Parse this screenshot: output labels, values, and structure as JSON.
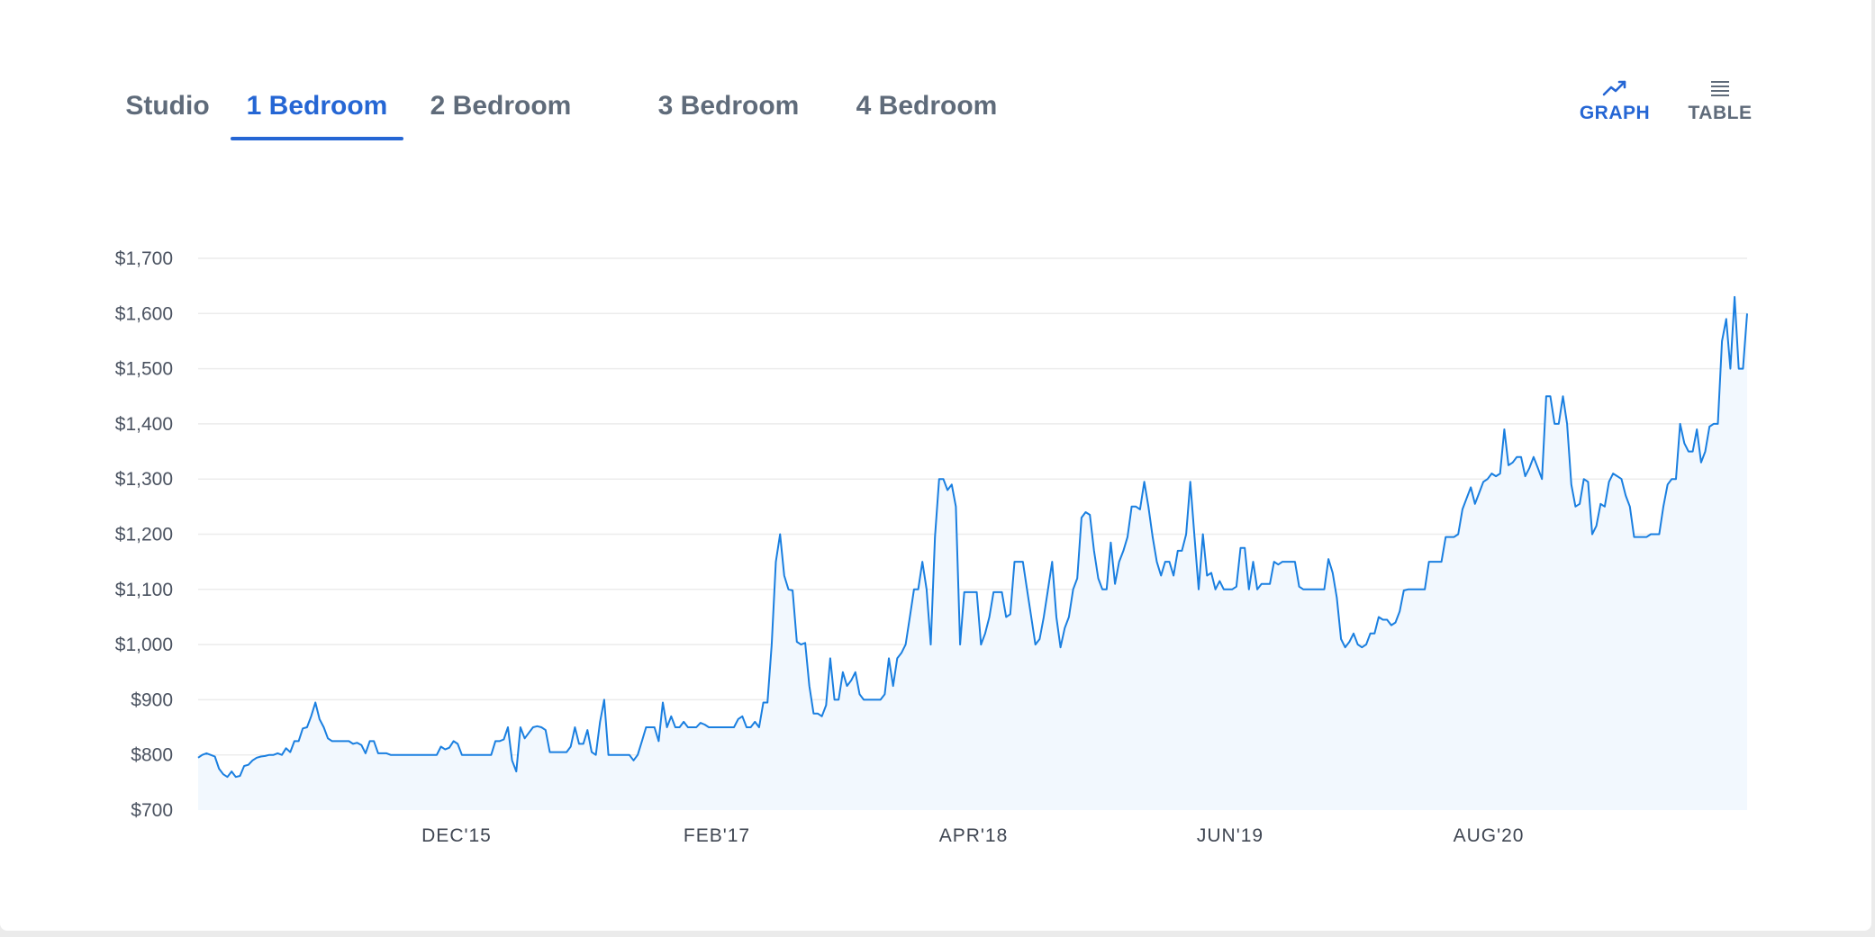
{
  "tabs": [
    {
      "label": "Studio",
      "active": false
    },
    {
      "label": "1 Bedroom",
      "active": true
    },
    {
      "label": "2 Bedroom",
      "active": false
    },
    {
      "label": "3 Bedroom",
      "active": false
    },
    {
      "label": "4 Bedroom",
      "active": false
    }
  ],
  "view_toggle": {
    "graph_label": "GRAPH",
    "graph_icon": "line-chart-icon",
    "table_label": "TABLE",
    "table_icon": "list-lines-icon",
    "active": "graph"
  },
  "colors": {
    "accent": "#2566d4",
    "line": "#1a7fe0",
    "area_fill": "#f2f8fe",
    "grid": "#ececec",
    "tab_inactive": "#5f6b7a"
  },
  "chart_data": {
    "type": "area",
    "title": "",
    "xlabel": "",
    "ylabel": "",
    "ylim": [
      700,
      1700
    ],
    "yticks": [
      "$700",
      "$800",
      "$900",
      "$1,000",
      "$1,100",
      "$1,200",
      "$1,300",
      "$1,400",
      "$1,500",
      "$1,600",
      "$1,700"
    ],
    "xticks": [
      "DEC'15",
      "FEB'17",
      "APR'18",
      "JUN'19",
      "AUG'20"
    ],
    "grid": true,
    "series": [
      {
        "values": [
          795,
          800,
          803,
          800,
          797,
          775,
          765,
          760,
          770,
          760,
          762,
          780,
          782,
          790,
          795,
          797,
          798,
          800,
          800,
          803,
          800,
          812,
          805,
          825,
          825,
          848,
          850,
          870,
          895,
          865,
          850,
          830,
          825,
          825,
          825,
          825,
          825,
          820,
          822,
          818,
          803,
          825,
          825,
          803,
          803,
          803,
          800,
          800,
          800,
          800,
          800,
          800,
          800,
          800,
          800,
          800,
          800,
          800,
          815,
          810,
          813,
          825,
          820,
          800,
          800,
          800,
          800,
          800,
          800,
          800,
          800,
          825,
          825,
          828,
          850,
          790,
          770,
          850,
          830,
          840,
          850,
          852,
          850,
          845,
          805,
          805,
          805,
          805,
          805,
          815,
          850,
          820,
          820,
          845,
          805,
          800,
          860,
          900,
          800,
          800,
          800,
          800,
          800,
          800,
          790,
          800,
          825,
          850,
          850,
          850,
          825,
          895,
          850,
          870,
          850,
          850,
          860,
          850,
          850,
          850,
          858,
          855,
          850,
          850,
          850,
          850,
          850,
          850,
          850,
          865,
          870,
          850,
          850,
          860,
          850,
          895,
          895,
          1000,
          1150,
          1200,
          1125,
          1100,
          1098,
          1005,
          1000,
          1003,
          925,
          875,
          875,
          870,
          890,
          975,
          900,
          900,
          950,
          925,
          935,
          950,
          910,
          900,
          900,
          900,
          900,
          900,
          910,
          975,
          925,
          975,
          985,
          1000,
          1050,
          1100,
          1100,
          1150,
          1100,
          1000,
          1195,
          1300,
          1300,
          1280,
          1290,
          1250,
          1000,
          1095,
          1095,
          1095,
          1095,
          1000,
          1020,
          1050,
          1095,
          1095,
          1095,
          1050,
          1055,
          1150,
          1150,
          1150,
          1100,
          1050,
          1000,
          1010,
          1050,
          1100,
          1150,
          1050,
          995,
          1030,
          1050,
          1100,
          1120,
          1230,
          1240,
          1235,
          1170,
          1120,
          1100,
          1100,
          1185,
          1110,
          1150,
          1170,
          1195,
          1250,
          1250,
          1245,
          1295,
          1250,
          1195,
          1150,
          1125,
          1150,
          1150,
          1125,
          1170,
          1170,
          1200,
          1295,
          1195,
          1100,
          1200,
          1125,
          1130,
          1100,
          1115,
          1100,
          1100,
          1100,
          1105,
          1175,
          1175,
          1100,
          1150,
          1100,
          1110,
          1110,
          1110,
          1150,
          1145,
          1150,
          1150,
          1150,
          1150,
          1105,
          1100,
          1100,
          1100,
          1100,
          1100,
          1100,
          1155,
          1130,
          1085,
          1010,
          995,
          1005,
          1020,
          1000,
          995,
          1000,
          1020,
          1020,
          1050,
          1045,
          1045,
          1035,
          1040,
          1060,
          1098,
          1100,
          1100,
          1100,
          1100,
          1100,
          1150,
          1150,
          1150,
          1150,
          1195,
          1195,
          1195,
          1200,
          1245,
          1265,
          1285,
          1255,
          1275,
          1295,
          1300,
          1310,
          1305,
          1310,
          1390,
          1325,
          1330,
          1340,
          1340,
          1305,
          1320,
          1340,
          1320,
          1300,
          1450,
          1450,
          1400,
          1400,
          1450,
          1400,
          1290,
          1250,
          1255,
          1300,
          1295,
          1200,
          1215,
          1255,
          1250,
          1295,
          1310,
          1305,
          1300,
          1270,
          1250,
          1195,
          1195,
          1195,
          1195,
          1200,
          1200,
          1200,
          1250,
          1290,
          1300,
          1300,
          1400,
          1365,
          1350,
          1350,
          1390,
          1330,
          1350,
          1395,
          1400,
          1400,
          1550,
          1590,
          1500,
          1630,
          1500,
          1500,
          1600
        ]
      }
    ]
  }
}
